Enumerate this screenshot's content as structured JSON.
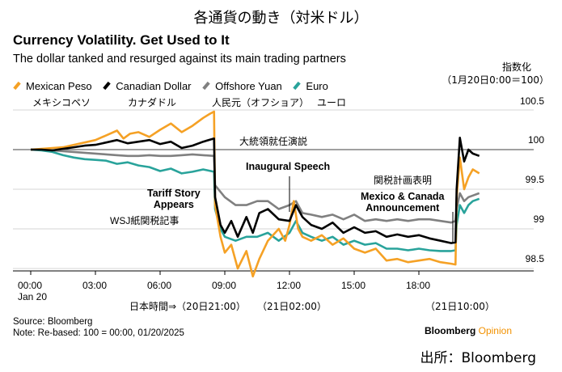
{
  "header": {
    "jp_title": "各通貨の動き（対米ドル）",
    "title": "Currency Volatility. Get Used to It",
    "subtitle": "The dollar tanked and resurged against its main trading partners",
    "index_label": "指数化",
    "index_sub": "（1月20日0:00＝100）"
  },
  "legend_jp": [
    "メキシコペソ",
    "カナダドル",
    "人民元（オフショア）",
    "ユーロ"
  ],
  "annotations": {
    "tariff_story": "Tariff Story\nAppears",
    "wsj": "WSJ紙関税記事",
    "inaugural": "Inaugural Speech",
    "inaugural_jp": "大統領就任演説",
    "mexico_canada": "Mexico & Canada\nAnnouncement",
    "mexico_canada_jp": "関税計画表明"
  },
  "x_axis": {
    "ticks": [
      "00:00",
      "03:00",
      "06:00",
      "09:00",
      "12:00",
      "15:00",
      "18:00"
    ],
    "sub": "Jan 20",
    "jp_time_label": "日本時間⇒（20日21:00）",
    "jp_noon": "（21日02:00）",
    "jp_end": "（21日10:00）"
  },
  "footer": {
    "source": "Source: Bloomberg",
    "note": "Note: Re-based: 100 = 00:00, 01/20/2025",
    "brand": "Bloomberg",
    "brand_suffix": "Opinion",
    "credit": "出所：Bloomberg"
  },
  "chart_data": {
    "type": "line",
    "x_unit": "hours since 00:00 Jan 20",
    "x_ticks": [
      "00:00",
      "03:00",
      "06:00",
      "09:00",
      "12:00",
      "15:00",
      "18:00"
    ],
    "xlim": [
      0,
      21
    ],
    "ylim": [
      98.4,
      100.55
    ],
    "y_ticks": [
      98.5,
      99.0,
      99.5,
      100.0,
      100.5
    ],
    "grid": true,
    "legend_position": "top-left",
    "series": [
      {
        "name": "Mexican Peso",
        "color": "#f5a125",
        "points": [
          [
            0,
            100
          ],
          [
            0.5,
            100.01
          ],
          [
            1,
            100.02
          ],
          [
            1.5,
            100.03
          ],
          [
            2,
            100.06
          ],
          [
            2.5,
            100.09
          ],
          [
            3,
            100.12
          ],
          [
            3.5,
            100.18
          ],
          [
            4,
            100.24
          ],
          [
            4.3,
            100.14
          ],
          [
            4.6,
            100.2
          ],
          [
            5,
            100.22
          ],
          [
            5.5,
            100.16
          ],
          [
            6,
            100.25
          ],
          [
            6.5,
            100.33
          ],
          [
            7,
            100.22
          ],
          [
            7.5,
            100.3
          ],
          [
            8,
            100.4
          ],
          [
            8.3,
            100.45
          ],
          [
            8.5,
            100.48
          ],
          [
            8.55,
            99.3
          ],
          [
            8.8,
            98.9
          ],
          [
            9,
            98.7
          ],
          [
            9.3,
            98.8
          ],
          [
            9.6,
            98.5
          ],
          [
            10,
            98.72
          ],
          [
            10.3,
            98.4
          ],
          [
            10.6,
            98.62
          ],
          [
            11,
            98.85
          ],
          [
            11.5,
            99.0
          ],
          [
            11.8,
            98.85
          ],
          [
            12,
            99.05
          ],
          [
            12.2,
            99.35
          ],
          [
            12.4,
            99.0
          ],
          [
            12.6,
            98.9
          ],
          [
            13,
            98.85
          ],
          [
            13.5,
            98.92
          ],
          [
            14,
            98.8
          ],
          [
            14.5,
            98.88
          ],
          [
            15,
            98.75
          ],
          [
            15.5,
            98.7
          ],
          [
            16,
            98.75
          ],
          [
            16.5,
            98.6
          ],
          [
            17,
            98.62
          ],
          [
            17.5,
            98.58
          ],
          [
            18,
            98.6
          ],
          [
            18.5,
            98.62
          ],
          [
            19,
            98.58
          ],
          [
            19.5,
            98.56
          ],
          [
            19.7,
            98.55
          ],
          [
            19.75,
            99.4
          ],
          [
            19.9,
            99.9
          ],
          [
            20.1,
            99.5
          ],
          [
            20.3,
            99.65
          ],
          [
            20.5,
            99.75
          ],
          [
            20.8,
            99.7
          ]
        ]
      },
      {
        "name": "Canadian Dollar",
        "color": "#000000",
        "points": [
          [
            0,
            100
          ],
          [
            0.5,
            100.0
          ],
          [
            1,
            99.99
          ],
          [
            1.5,
            100.01
          ],
          [
            2,
            100.03
          ],
          [
            2.5,
            100.05
          ],
          [
            3,
            100.06
          ],
          [
            3.5,
            100.09
          ],
          [
            4,
            100.12
          ],
          [
            4.5,
            100.08
          ],
          [
            5,
            100.1
          ],
          [
            5.5,
            100.12
          ],
          [
            6,
            100.07
          ],
          [
            6.5,
            100.1
          ],
          [
            7,
            100.02
          ],
          [
            7.5,
            100.05
          ],
          [
            8,
            100.1
          ],
          [
            8.5,
            100.14
          ],
          [
            8.55,
            99.4
          ],
          [
            8.8,
            99.05
          ],
          [
            9,
            98.95
          ],
          [
            9.3,
            99.1
          ],
          [
            9.6,
            98.9
          ],
          [
            10,
            99.15
          ],
          [
            10.3,
            98.95
          ],
          [
            10.6,
            99.2
          ],
          [
            11,
            99.25
          ],
          [
            11.5,
            99.12
          ],
          [
            12,
            99.1
          ],
          [
            12.3,
            99.3
          ],
          [
            12.6,
            99.15
          ],
          [
            13,
            99.05
          ],
          [
            13.5,
            99.0
          ],
          [
            14,
            99.08
          ],
          [
            14.5,
            98.95
          ],
          [
            15,
            99.02
          ],
          [
            15.5,
            98.95
          ],
          [
            16,
            98.97
          ],
          [
            16.5,
            98.9
          ],
          [
            17,
            98.93
          ],
          [
            17.5,
            98.9
          ],
          [
            18,
            98.92
          ],
          [
            18.5,
            98.88
          ],
          [
            19,
            98.85
          ],
          [
            19.5,
            98.82
          ],
          [
            19.7,
            98.83
          ],
          [
            19.75,
            99.5
          ],
          [
            19.9,
            100.15
          ],
          [
            20.1,
            99.85
          ],
          [
            20.3,
            100.0
          ],
          [
            20.5,
            99.95
          ],
          [
            20.8,
            99.92
          ]
        ]
      },
      {
        "name": "Offshore Yuan",
        "color": "#808080",
        "points": [
          [
            0,
            100
          ],
          [
            0.5,
            100.0
          ],
          [
            1,
            99.99
          ],
          [
            1.5,
            99.98
          ],
          [
            2,
            99.97
          ],
          [
            2.5,
            99.96
          ],
          [
            3,
            99.95
          ],
          [
            3.5,
            99.94
          ],
          [
            4,
            99.93
          ],
          [
            4.5,
            99.92
          ],
          [
            5,
            99.92
          ],
          [
            5.5,
            99.93
          ],
          [
            6,
            99.92
          ],
          [
            6.5,
            99.92
          ],
          [
            7,
            99.93
          ],
          [
            7.5,
            99.94
          ],
          [
            8,
            99.93
          ],
          [
            8.5,
            99.92
          ],
          [
            8.55,
            99.55
          ],
          [
            9,
            99.4
          ],
          [
            9.5,
            99.3
          ],
          [
            10,
            99.3
          ],
          [
            10.5,
            99.35
          ],
          [
            11,
            99.35
          ],
          [
            11.5,
            99.25
          ],
          [
            12,
            99.3
          ],
          [
            12.3,
            99.35
          ],
          [
            12.6,
            99.2
          ],
          [
            13,
            99.18
          ],
          [
            13.5,
            99.15
          ],
          [
            14,
            99.18
          ],
          [
            14.5,
            99.12
          ],
          [
            15,
            99.18
          ],
          [
            15.5,
            99.1
          ],
          [
            16,
            99.12
          ],
          [
            16.5,
            99.1
          ],
          [
            17,
            99.12
          ],
          [
            17.5,
            99.1
          ],
          [
            18,
            99.12
          ],
          [
            18.5,
            99.12
          ],
          [
            19,
            99.1
          ],
          [
            19.5,
            99.08
          ],
          [
            19.7,
            99.1
          ],
          [
            19.75,
            99.25
          ],
          [
            19.9,
            99.45
          ],
          [
            20.1,
            99.35
          ],
          [
            20.3,
            99.4
          ],
          [
            20.5,
            99.42
          ],
          [
            20.8,
            99.45
          ]
        ]
      },
      {
        "name": "Euro",
        "color": "#29a39b",
        "points": [
          [
            0,
            100
          ],
          [
            0.5,
            99.99
          ],
          [
            1,
            99.97
          ],
          [
            1.5,
            99.93
          ],
          [
            2,
            99.9
          ],
          [
            2.5,
            99.88
          ],
          [
            3,
            99.87
          ],
          [
            3.5,
            99.86
          ],
          [
            4,
            99.82
          ],
          [
            4.5,
            99.84
          ],
          [
            5,
            99.8
          ],
          [
            5.5,
            99.78
          ],
          [
            6,
            99.73
          ],
          [
            6.5,
            99.76
          ],
          [
            7,
            99.7
          ],
          [
            7.5,
            99.72
          ],
          [
            8,
            99.75
          ],
          [
            8.5,
            99.72
          ],
          [
            8.55,
            99.25
          ],
          [
            8.8,
            99.0
          ],
          [
            9,
            98.9
          ],
          [
            9.5,
            98.85
          ],
          [
            10,
            98.9
          ],
          [
            10.5,
            98.9
          ],
          [
            11,
            98.95
          ],
          [
            11.5,
            98.85
          ],
          [
            12,
            98.95
          ],
          [
            12.3,
            99.1
          ],
          [
            12.6,
            98.95
          ],
          [
            13,
            98.9
          ],
          [
            13.5,
            98.85
          ],
          [
            14,
            98.9
          ],
          [
            14.5,
            98.8
          ],
          [
            15,
            98.85
          ],
          [
            15.5,
            98.8
          ],
          [
            16,
            98.82
          ],
          [
            16.5,
            98.75
          ],
          [
            17,
            98.75
          ],
          [
            17.5,
            98.73
          ],
          [
            18,
            98.75
          ],
          [
            18.5,
            98.73
          ],
          [
            19,
            98.72
          ],
          [
            19.5,
            98.72
          ],
          [
            19.7,
            98.73
          ],
          [
            19.75,
            99.05
          ],
          [
            19.9,
            99.3
          ],
          [
            20.1,
            99.2
          ],
          [
            20.3,
            99.3
          ],
          [
            20.5,
            99.35
          ],
          [
            20.8,
            99.38
          ]
        ]
      }
    ]
  }
}
